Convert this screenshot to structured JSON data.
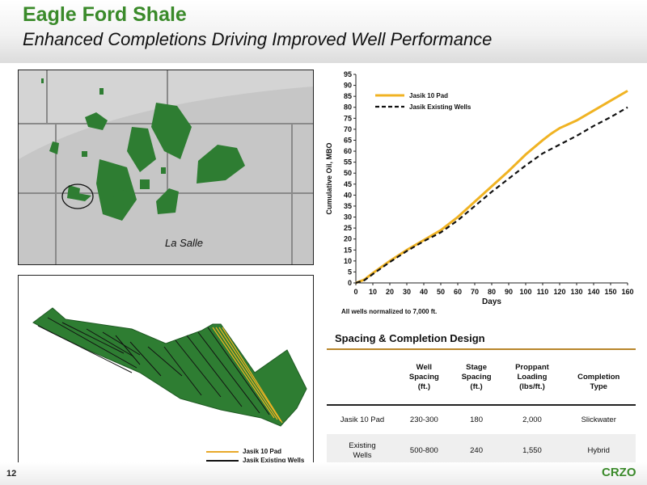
{
  "header": {
    "title": "Eagle Ford Shale",
    "subtitle": "Enhanced Completions Driving Improved Well Performance"
  },
  "map_top": {
    "label": "La Salle"
  },
  "map_bottom": {
    "legend": [
      {
        "label": "Jasik 10 Pad",
        "color": "#e8a92a"
      },
      {
        "label": "Jasik Existing Wells",
        "color": "#111111"
      }
    ]
  },
  "chart_data": {
    "type": "line",
    "xlabel": "Days",
    "ylabel": "Cumulative Oil, MBO",
    "xlim": [
      0,
      160
    ],
    "ylim": [
      0,
      95
    ],
    "xticks": [
      0,
      10,
      20,
      30,
      40,
      50,
      60,
      70,
      80,
      90,
      100,
      110,
      120,
      130,
      140,
      150,
      160
    ],
    "yticks": [
      0,
      5,
      10,
      15,
      20,
      25,
      30,
      35,
      40,
      45,
      50,
      55,
      60,
      65,
      70,
      75,
      80,
      85,
      90,
      95
    ],
    "note": "All wells normalized to 7,000 ft.",
    "legend_position": "top-left",
    "series": [
      {
        "name": "Jasik 10 Pad",
        "color": "#f0b323",
        "style": "solid",
        "x": [
          0,
          5,
          10,
          20,
          30,
          40,
          50,
          60,
          70,
          80,
          90,
          100,
          110,
          115,
          120,
          130,
          140,
          150,
          160
        ],
        "y": [
          0,
          1.5,
          4.5,
          10,
          15,
          19.5,
          24,
          30,
          37,
          44,
          51,
          58.5,
          65,
          68,
          70.5,
          74,
          78.5,
          83,
          87.5
        ]
      },
      {
        "name": "Jasik Existing Wells",
        "color": "#111111",
        "style": "dashed",
        "x": [
          0,
          5,
          10,
          20,
          30,
          40,
          50,
          60,
          70,
          80,
          90,
          100,
          110,
          120,
          130,
          140,
          150,
          160
        ],
        "y": [
          0,
          1.2,
          4,
          9.5,
          14.5,
          19,
          23,
          28.5,
          35,
          41.5,
          47.5,
          53.5,
          59,
          63,
          67,
          71.5,
          75.5,
          80
        ]
      }
    ]
  },
  "table": {
    "title": "Spacing & Completion Design",
    "headers": [
      "",
      "Well\nSpacing\n(ft.)",
      "Stage\nSpacing\n(ft.)",
      "Proppant\nLoading\n(lbs/ft.)",
      "Completion\nType"
    ],
    "h1a": "Well",
    "h1b": "Spacing",
    "h1c": "(ft.)",
    "h2a": "Stage",
    "h2b": "Spacing",
    "h2c": "(ft.)",
    "h3a": "Proppant",
    "h3b": "Loading",
    "h3c": "(lbs/ft.)",
    "h4a": "Completion",
    "h4b": "Type",
    "rows": [
      [
        "Jasik 10 Pad",
        "230-300",
        "180",
        "2,000",
        "Slickwater"
      ],
      [
        "Existing\nWells",
        "500-800",
        "240",
        "1,550",
        "Hybrid"
      ]
    ],
    "r2a": "Existing",
    "r2b": "Wells"
  },
  "footer": {
    "page": "12",
    "brand": "CRZO"
  },
  "colors": {
    "brand_green": "#3a8a2a",
    "map_green": "#2e7d32",
    "accent_gold": "#b8862b"
  }
}
